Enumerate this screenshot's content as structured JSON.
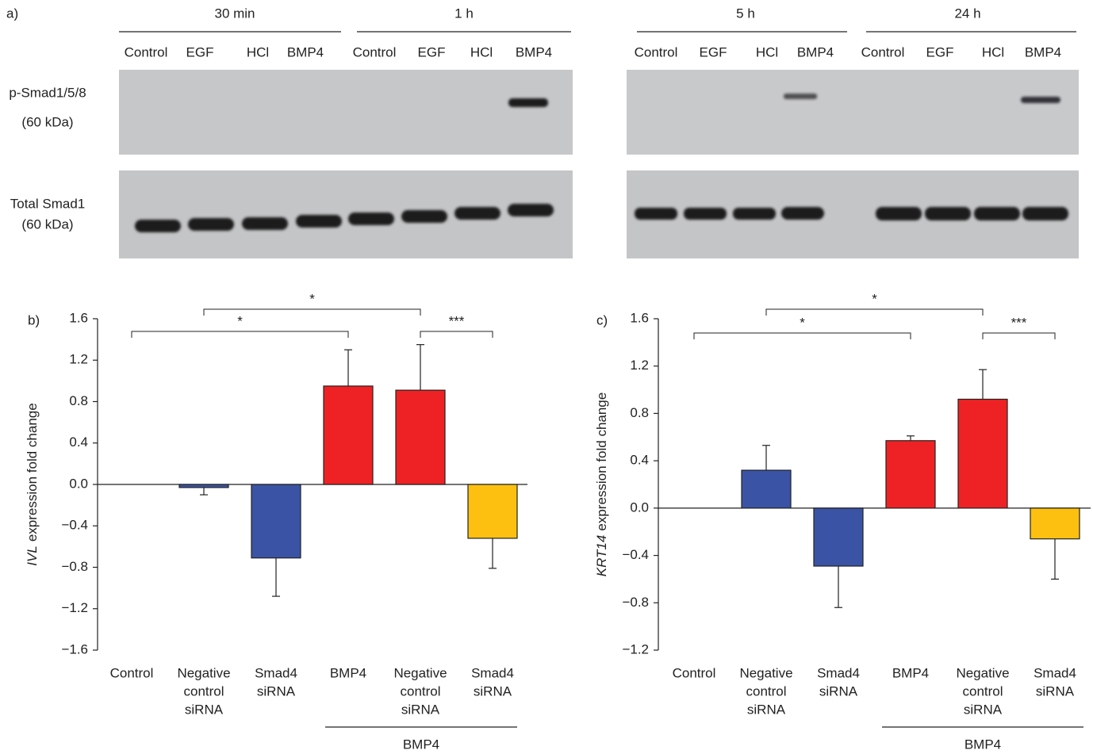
{
  "panel_a": {
    "label": "a)",
    "groups": [
      {
        "label": "30 min",
        "lanes": [
          "Control",
          "EGF",
          "HCl",
          "BMP4"
        ]
      },
      {
        "label": "1 h",
        "lanes": [
          "Control",
          "EGF",
          "HCl",
          "BMP4"
        ]
      },
      {
        "label": "5 h",
        "lanes": [
          "Control",
          "EGF",
          "HCl",
          "BMP4"
        ]
      },
      {
        "label": "24 h",
        "lanes": [
          "Control",
          "EGF",
          "HCl",
          "BMP4"
        ]
      }
    ],
    "rows": [
      {
        "lines": [
          "p-Smad1/5/8",
          "(60 kDa)"
        ]
      },
      {
        "lines": [
          "Total Smad1",
          "(60 kDa)"
        ]
      }
    ]
  },
  "chart_data": [
    {
      "type": "bar",
      "panel_label": "b)",
      "ylabel_gene": "IVL",
      "ylabel_rest": "expression fold change",
      "categories": [
        [
          "Control"
        ],
        [
          "Negative",
          "control",
          "siRNA"
        ],
        [
          "Smad4",
          "siRNA"
        ],
        [
          "BMP4"
        ],
        [
          "Negative",
          "control",
          "siRNA"
        ],
        [
          "Smad4",
          "siRNA"
        ]
      ],
      "values": [
        0,
        -0.03,
        -0.71,
        0.95,
        0.91,
        -0.52
      ],
      "errors": [
        0,
        0.07,
        0.37,
        0.35,
        0.44,
        0.29
      ],
      "colors": [
        "#ffffff",
        "#3a53a4",
        "#3a53a4",
        "#ee2224",
        "#ee2224",
        "#fdc010"
      ],
      "ylim": [
        -1.6,
        1.6
      ],
      "yticks": [
        {
          "value": -1.6,
          "label": "−1.6"
        },
        {
          "value": -1.2,
          "label": "−1.2"
        },
        {
          "value": -0.8,
          "label": "−0.8"
        },
        {
          "value": -0.4,
          "label": "−0.4"
        },
        {
          "value": 0,
          "label": "0.0"
        },
        0.4,
        0.8,
        1.2,
        1.6
      ],
      "group_label": "BMP4",
      "significance": [
        "*",
        "*",
        "***"
      ]
    },
    {
      "type": "bar",
      "panel_label": "c)",
      "ylabel_gene": "KRT14",
      "ylabel_rest": "expression fold change",
      "categories": [
        [
          "Control"
        ],
        [
          "Negative",
          "control",
          "siRNA"
        ],
        [
          "Smad4",
          "siRNA"
        ],
        [
          "BMP4"
        ],
        [
          "Negative",
          "control",
          "siRNA"
        ],
        [
          "Smad4",
          "siRNA"
        ]
      ],
      "values": [
        0,
        0.32,
        -0.49,
        0.57,
        0.92,
        -0.26
      ],
      "errors": [
        0,
        0.21,
        0.35,
        0.04,
        0.25,
        0.34
      ],
      "colors": [
        "#ffffff",
        "#3a53a4",
        "#3a53a4",
        "#ee2224",
        "#ee2224",
        "#fdc010"
      ],
      "ylim": [
        -1.2,
        1.6
      ],
      "yticks": [
        {
          "value": -1.2,
          "label": "−1.2"
        },
        {
          "value": -0.8,
          "label": "−0.8"
        },
        {
          "value": -0.4,
          "label": "−0.4"
        },
        {
          "value": 0,
          "label": "0.0"
        },
        0.4,
        0.8,
        1.2,
        1.6
      ],
      "group_label": "BMP4",
      "significance": [
        "*",
        "*",
        "***"
      ]
    }
  ]
}
